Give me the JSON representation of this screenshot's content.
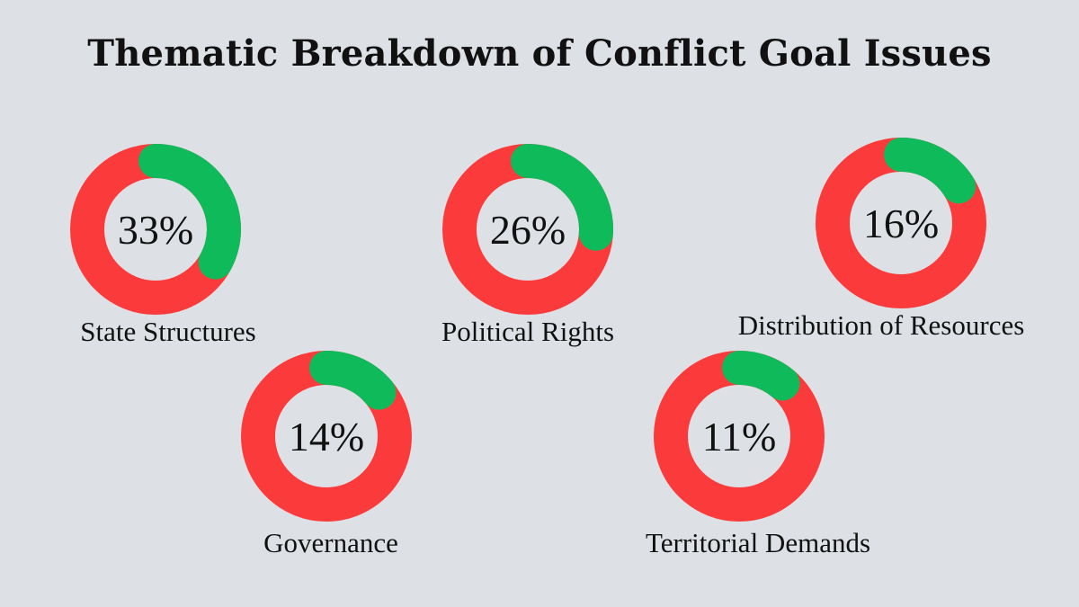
{
  "title": "Thematic Breakdown of Conflict Goal Issues",
  "colors": {
    "background": "#dde1e6",
    "remainder": "#fb3b3b",
    "value": "#0fba5b"
  },
  "chart_data": [
    {
      "type": "pie",
      "category": "State Structures",
      "value": 33,
      "value_label": "33%"
    },
    {
      "type": "pie",
      "category": "Political Rights",
      "value": 26,
      "value_label": "26%"
    },
    {
      "type": "pie",
      "category": "Distribution of Resources",
      "value": 16,
      "value_label": "16%"
    },
    {
      "type": "pie",
      "category": "Governance",
      "value": 14,
      "value_label": "14%"
    },
    {
      "type": "pie",
      "category": "Territorial Demands",
      "value": 11,
      "value_label": "11%"
    }
  ]
}
